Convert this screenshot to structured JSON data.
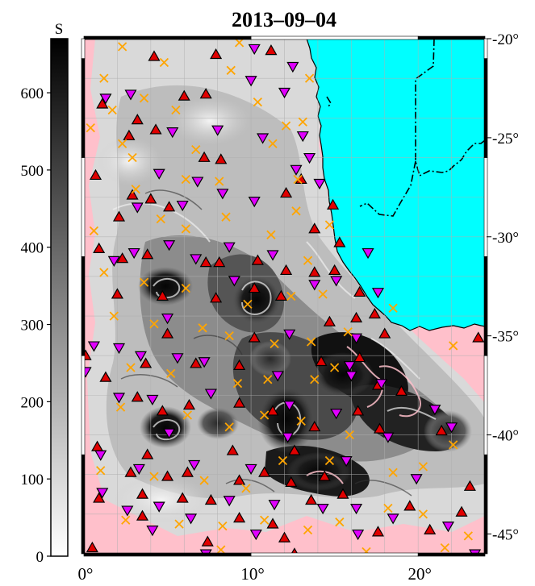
{
  "title": "2013–09–04",
  "colorbar": {
    "label": "S",
    "ticks": [
      "0",
      "100",
      "200",
      "300",
      "400",
      "500",
      "600"
    ],
    "tick_values": [
      0,
      100,
      200,
      300,
      400,
      500,
      600
    ],
    "range": [
      0,
      670
    ],
    "gradient": [
      "#ffffff",
      "#000000"
    ]
  },
  "map": {
    "lon_range": [
      0,
      24
    ],
    "lat_range": [
      -46,
      -20
    ],
    "lon_ticks": [
      {
        "value": 0,
        "label": "0°"
      },
      {
        "value": 10,
        "label": "10°"
      },
      {
        "value": 20,
        "label": "20°"
      }
    ],
    "lat_ticks": [
      {
        "value": -20,
        "label": "-20°"
      },
      {
        "value": -25,
        "label": "-25°"
      },
      {
        "value": -30,
        "label": "-30°"
      },
      {
        "value": -35,
        "label": "-35°"
      },
      {
        "value": -40,
        "label": "-40°"
      },
      {
        "value": -45,
        "label": "-45°"
      }
    ],
    "colors": {
      "land": "#00ffff",
      "no_data": "#ffc0cb",
      "grid": "#b0b0b0",
      "anticyclonic_marker": "#e00000",
      "cyclonic_marker": "#e000ff",
      "cross_marker": "#ffa500"
    },
    "legend": "none",
    "grid": true
  },
  "chart_data": {
    "type": "scatter",
    "title": "2013–09–04",
    "x_range": [
      0,
      24
    ],
    "y_range": [
      -46,
      -20
    ],
    "series": [
      {
        "marker": "triangle-up",
        "color": "#e00000",
        "points": [
          [
            7.9,
            -20.8
          ],
          [
            4.2,
            -20.9
          ],
          [
            11.2,
            -20.6
          ],
          [
            7.3,
            -22.8
          ],
          [
            1.1,
            -23.3
          ],
          [
            6.0,
            -22.9
          ],
          [
            3.2,
            -24.1
          ],
          [
            2.7,
            -24.9
          ],
          [
            4.3,
            -24.6
          ],
          [
            7.2,
            -26.0
          ],
          [
            8.2,
            -26.1
          ],
          [
            0.7,
            -26.9
          ],
          [
            4.0,
            -28.1
          ],
          [
            2.9,
            -27.9
          ],
          [
            2.1,
            -29.0
          ],
          [
            5.1,
            -28.5
          ],
          [
            12.1,
            -27.8
          ],
          [
            13.0,
            -27.1
          ],
          [
            14.9,
            -28.4
          ],
          [
            13.8,
            -29.6
          ],
          [
            15.3,
            -30.3
          ],
          [
            0.9,
            -30.6
          ],
          [
            2.3,
            -31.1
          ],
          [
            3.8,
            -30.9
          ],
          [
            7.3,
            -31.3
          ],
          [
            8.1,
            -31.3
          ],
          [
            10.4,
            -31.2
          ],
          [
            12.1,
            -31.7
          ],
          [
            13.8,
            -31.8
          ],
          [
            15.0,
            -31.7
          ],
          [
            2.0,
            -32.9
          ],
          [
            4.7,
            -33.0
          ],
          [
            7.9,
            -33.1
          ],
          [
            10.2,
            -32.6
          ],
          [
            11.8,
            -33.0
          ],
          [
            16.5,
            -32.8
          ],
          [
            16.3,
            -34.1
          ],
          [
            17.4,
            -33.9
          ],
          [
            5.0,
            -34.9
          ],
          [
            10.2,
            -35.1
          ],
          [
            14.7,
            -34.3
          ],
          [
            18.0,
            -34.9
          ],
          [
            23.6,
            -35.1
          ],
          [
            0.1,
            -36.0
          ],
          [
            1.3,
            -37.1
          ],
          [
            3.7,
            -36.4
          ],
          [
            6.7,
            -36.4
          ],
          [
            9.3,
            -36.5
          ],
          [
            14.2,
            -36.3
          ],
          [
            16.5,
            -36.1
          ],
          [
            17.6,
            -37.5
          ],
          [
            19.0,
            -37.8
          ],
          [
            3.2,
            -38.1
          ],
          [
            4.7,
            -38.8
          ],
          [
            6.3,
            -38.5
          ],
          [
            9.3,
            -38.4
          ],
          [
            11.3,
            -38.8
          ],
          [
            13.8,
            -39.6
          ],
          [
            16.4,
            -38.8
          ],
          [
            21.4,
            -39.8
          ],
          [
            0.8,
            -40.6
          ],
          [
            3.8,
            -41.0
          ],
          [
            8.9,
            -40.8
          ],
          [
            12.6,
            -40.8
          ],
          [
            17.7,
            -39.7
          ],
          [
            2.8,
            -41.9
          ],
          [
            5.0,
            -42.1
          ],
          [
            6.2,
            -41.9
          ],
          [
            9.3,
            -42.3
          ],
          [
            10.8,
            -41.9
          ],
          [
            12.4,
            -42.4
          ],
          [
            14.4,
            -42.1
          ],
          [
            0.9,
            -43.2
          ],
          [
            3.5,
            -43.0
          ],
          [
            5.9,
            -43.2
          ],
          [
            7.6,
            -43.3
          ],
          [
            13.6,
            -43.3
          ],
          [
            15.5,
            -43.0
          ],
          [
            19.5,
            -43.6
          ],
          [
            22.6,
            -43.9
          ],
          [
            3.5,
            -44.1
          ],
          [
            9.3,
            -44.2
          ],
          [
            11.3,
            -44.5
          ],
          [
            12.0,
            -45.2
          ],
          [
            17.6,
            -44.9
          ],
          [
            20.7,
            -44.8
          ],
          [
            7.4,
            -45.4
          ],
          [
            0.5,
            -45.7
          ],
          [
            12.6,
            -46.0
          ],
          [
            23.1,
            -42.6
          ]
        ]
      },
      {
        "marker": "triangle-down",
        "color": "#e000ff",
        "points": [
          [
            10.2,
            -20.5
          ],
          [
            12.5,
            -21.4
          ],
          [
            10.0,
            -22.1
          ],
          [
            12.0,
            -22.7
          ],
          [
            1.3,
            -23.0
          ],
          [
            2.8,
            -22.8
          ],
          [
            5.3,
            -24.7
          ],
          [
            8.0,
            -24.6
          ],
          [
            10.7,
            -25.0
          ],
          [
            13.1,
            -24.9
          ],
          [
            13.5,
            -26.0
          ],
          [
            12.7,
            -26.6
          ],
          [
            14.1,
            -27.3
          ],
          [
            4.5,
            -26.8
          ],
          [
            6.8,
            -27.2
          ],
          [
            3.2,
            -28.5
          ],
          [
            5.9,
            -28.4
          ],
          [
            8.3,
            -27.8
          ],
          [
            10.2,
            -28.2
          ],
          [
            3.0,
            -30.8
          ],
          [
            5.1,
            -30.4
          ],
          [
            6.7,
            -31.1
          ],
          [
            8.7,
            -30.5
          ],
          [
            11.3,
            -30.9
          ],
          [
            1.8,
            -31.2
          ],
          [
            9.0,
            -32.2
          ],
          [
            13.8,
            -32.4
          ],
          [
            15.1,
            -32.2
          ],
          [
            17.6,
            -32.8
          ],
          [
            5.0,
            -34.1
          ],
          [
            0.6,
            -35.5
          ],
          [
            2.1,
            -35.6
          ],
          [
            3.4,
            -36.0
          ],
          [
            7.2,
            -36.3
          ],
          [
            12.3,
            -34.9
          ],
          [
            16.3,
            -35.1
          ],
          [
            0.1,
            -36.8
          ],
          [
            5.6,
            -36.1
          ],
          [
            11.6,
            -37.0
          ],
          [
            16.0,
            -37.0
          ],
          [
            17.8,
            -37.4
          ],
          [
            2.1,
            -38.1
          ],
          [
            4.1,
            -38.2
          ],
          [
            7.6,
            -37.9
          ],
          [
            12.3,
            -38.5
          ],
          [
            15.1,
            -38.9
          ],
          [
            21.0,
            -38.7
          ],
          [
            5.1,
            -39.9
          ],
          [
            12.2,
            -40.1
          ],
          [
            18.2,
            -40.1
          ],
          [
            22.0,
            -39.6
          ],
          [
            1.0,
            -41.0
          ],
          [
            3.3,
            -41.7
          ],
          [
            6.6,
            -41.5
          ],
          [
            10.0,
            -41.7
          ],
          [
            15.7,
            -41.3
          ],
          [
            19.9,
            -42.2
          ],
          [
            1.1,
            -42.9
          ],
          [
            2.6,
            -43.8
          ],
          [
            4.5,
            -43.6
          ],
          [
            8.7,
            -43.3
          ],
          [
            11.4,
            -43.5
          ],
          [
            14.3,
            -43.7
          ],
          [
            16.3,
            -43.7
          ],
          [
            4.1,
            -44.8
          ],
          [
            6.4,
            -44.2
          ],
          [
            10.3,
            -45.0
          ],
          [
            16.4,
            -45.0
          ],
          [
            18.5,
            -44.2
          ],
          [
            21.8,
            -44.6
          ],
          [
            7.3,
            -46.0
          ],
          [
            23.4,
            -46.0
          ],
          [
            15.9,
            -36.5
          ],
          [
            17.0,
            -30.8
          ]
        ]
      },
      {
        "marker": "cross",
        "color": "#ffa500",
        "points": [
          [
            2.3,
            -20.4
          ],
          [
            4.8,
            -21.2
          ],
          [
            8.8,
            -21.6
          ],
          [
            9.3,
            -20.2
          ],
          [
            1.2,
            -22.0
          ],
          [
            1.7,
            -23.6
          ],
          [
            3.6,
            -23.0
          ],
          [
            5.5,
            -23.6
          ],
          [
            10.4,
            -23.2
          ],
          [
            0.4,
            -24.5
          ],
          [
            2.3,
            -25.3
          ],
          [
            6.7,
            -25.6
          ],
          [
            11.3,
            -25.3
          ],
          [
            12.1,
            -24.4
          ],
          [
            2.9,
            -26.0
          ],
          [
            6.1,
            -27.1
          ],
          [
            8.1,
            -27.2
          ],
          [
            3.1,
            -27.6
          ],
          [
            8.5,
            -29.0
          ],
          [
            12.7,
            -28.7
          ],
          [
            14.7,
            -29.4
          ],
          [
            0.6,
            -29.7
          ],
          [
            4.6,
            -29.1
          ],
          [
            6.1,
            -29.6
          ],
          [
            1.2,
            -31.8
          ],
          [
            3.6,
            -32.3
          ],
          [
            6.1,
            -32.6
          ],
          [
            9.8,
            -33.4
          ],
          [
            12.4,
            -33.0
          ],
          [
            14.3,
            -32.9
          ],
          [
            1.8,
            -34.0
          ],
          [
            4.2,
            -34.4
          ],
          [
            7.1,
            -34.6
          ],
          [
            8.7,
            -35.0
          ],
          [
            11.4,
            -35.4
          ],
          [
            13.6,
            -35.3
          ],
          [
            15.8,
            -34.8
          ],
          [
            2.8,
            -36.6
          ],
          [
            5.2,
            -36.9
          ],
          [
            9.2,
            -37.4
          ],
          [
            11.0,
            -37.2
          ],
          [
            13.8,
            -37.2
          ],
          [
            15.0,
            -36.6
          ],
          [
            2.2,
            -38.6
          ],
          [
            6.2,
            -39.0
          ],
          [
            8.7,
            -39.6
          ],
          [
            10.8,
            -39.0
          ],
          [
            13.0,
            -39.3
          ],
          [
            15.9,
            -40.0
          ],
          [
            22.1,
            -40.5
          ],
          [
            1.0,
            -41.8
          ],
          [
            4.2,
            -42.1
          ],
          [
            7.2,
            -42.3
          ],
          [
            9.7,
            -42.7
          ],
          [
            11.9,
            -41.3
          ],
          [
            14.7,
            -41.3
          ],
          [
            18.5,
            -41.9
          ],
          [
            20.3,
            -41.6
          ],
          [
            2.5,
            -44.3
          ],
          [
            5.7,
            -44.5
          ],
          [
            8.3,
            -44.6
          ],
          [
            10.8,
            -44.3
          ],
          [
            13.4,
            -44.8
          ],
          [
            15.3,
            -44.4
          ],
          [
            18.2,
            -43.7
          ],
          [
            20.3,
            -44.0
          ],
          [
            23.0,
            -45.1
          ],
          [
            8.2,
            -45.8
          ],
          [
            16.9,
            -45.9
          ],
          [
            21.6,
            -45.7
          ],
          [
            22.1,
            -35.5
          ],
          [
            18.5,
            -33.6
          ],
          [
            13.4,
            -31.2
          ],
          [
            11.2,
            -29.9
          ],
          [
            12.8,
            -27.1
          ],
          [
            13.1,
            -24.2
          ],
          [
            13.5,
            -22.0
          ]
        ]
      }
    ]
  }
}
